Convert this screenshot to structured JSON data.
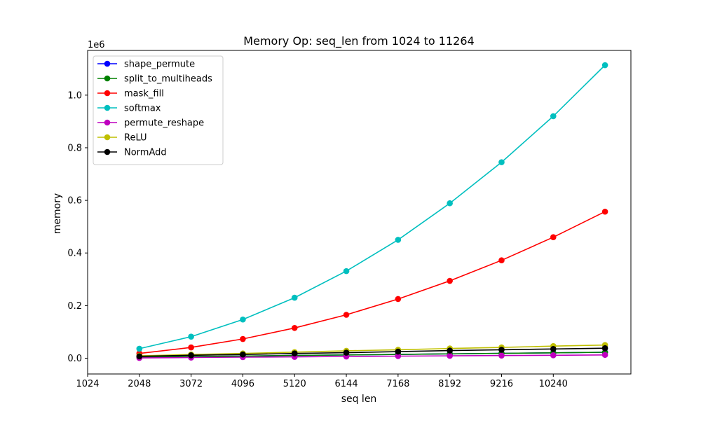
{
  "chart_data": {
    "type": "line",
    "title": "Memory Op: seq_len from 1024 to 11264",
    "xlabel": "seq len",
    "ylabel": "memory",
    "y_offset_label": "1e6",
    "x": [
      2048,
      3072,
      4096,
      5120,
      6144,
      7168,
      8192,
      9216,
      10240,
      11264
    ],
    "xlim": [
      1024,
      11776
    ],
    "ylim": [
      -0.06,
      1.17
    ],
    "y_scale": 1000000,
    "x_ticks": [
      1024,
      2048,
      3072,
      4096,
      5120,
      6144,
      7168,
      8192,
      9216,
      10240
    ],
    "x_tick_labels": [
      "1024",
      "2048",
      "3072",
      "4096",
      "5120",
      "6144",
      "7168",
      "8192",
      "9216",
      "10240"
    ],
    "y_ticks": [
      0.0,
      0.2,
      0.4,
      0.6,
      0.8,
      1.0
    ],
    "y_tick_labels": [
      "0.0",
      "0.2",
      "0.4",
      "0.6",
      "0.8",
      "1.0"
    ],
    "grid": false,
    "legend_position": "top-left",
    "series": [
      {
        "name": "shape_permute",
        "color": "#0000ff",
        "values": [
          4096,
          6144,
          8192,
          10240,
          12288,
          14336,
          16384,
          18432,
          20480,
          22528
        ]
      },
      {
        "name": "split_to_multiheads",
        "color": "#008000",
        "values": [
          4096,
          6144,
          8192,
          10240,
          12288,
          14336,
          16384,
          18432,
          20480,
          22528
        ]
      },
      {
        "name": "mask_fill",
        "color": "#ff0000",
        "values": [
          18000,
          41000,
          73000,
          115000,
          165000,
          225000,
          294000,
          372000,
          460000,
          557000
        ]
      },
      {
        "name": "softmax",
        "color": "#00bfbf",
        "values": [
          36000,
          82000,
          147000,
          230000,
          331000,
          450000,
          589000,
          745000,
          920000,
          1114000
        ]
      },
      {
        "name": "permute_reshape",
        "color": "#bf00bf",
        "values": [
          1000,
          2500,
          4000,
          5000,
          6500,
          8000,
          9000,
          10000,
          11000,
          12500
        ]
      },
      {
        "name": "ReLU",
        "color": "#bfbf00",
        "values": [
          9000,
          14000,
          18000,
          23000,
          28000,
          32000,
          37000,
          41000,
          46000,
          50000
        ]
      },
      {
        "name": "NormAdd",
        "color": "#000000",
        "values": [
          7000,
          11000,
          14000,
          18000,
          21000,
          25000,
          29000,
          32000,
          35000,
          38000
        ]
      }
    ]
  }
}
